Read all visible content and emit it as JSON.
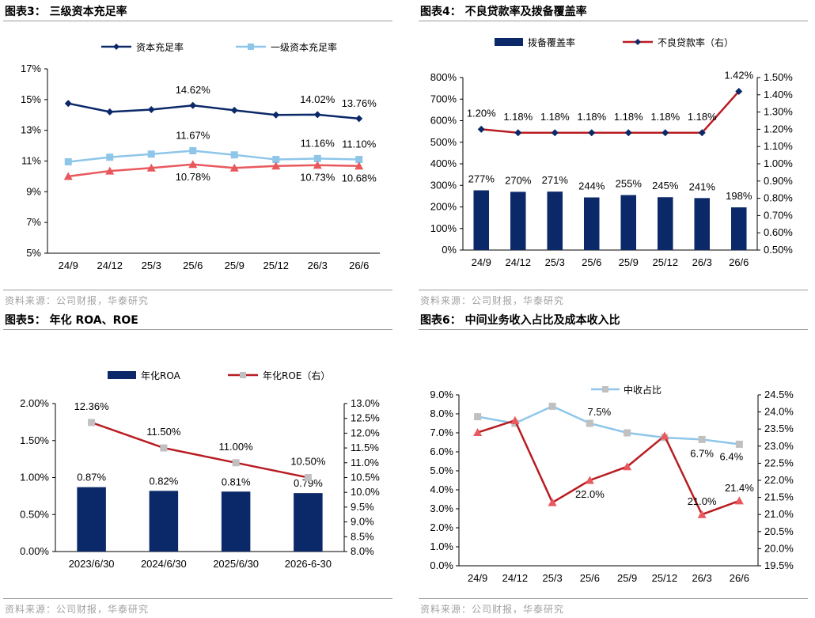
{
  "source_text": "资料来源：公司财报，华泰研究",
  "colors": {
    "navy": "#0b2868",
    "light_blue": "#8ec6ea",
    "red": "#b81c22",
    "salmon": "#e9585d",
    "gray_marker": "#c0c0c0",
    "rule": "#9a9a9a"
  },
  "chart_data": [
    {
      "panel_title": "图表3：  三级资本充足率",
      "type": "line",
      "categories": [
        "24/9",
        "24/12",
        "25/3",
        "25/6",
        "25/9",
        "25/12",
        "26/3",
        "26/6"
      ],
      "series": [
        {
          "name": "资本充足率",
          "values": [
            14.75,
            14.2,
            14.35,
            14.62,
            14.3,
            14.0,
            14.02,
            13.76
          ],
          "color": "navy",
          "marker": "diamond",
          "in_legend": true
        },
        {
          "name": "一级资本充足率",
          "values": [
            10.95,
            11.25,
            11.45,
            11.67,
            11.4,
            11.1,
            11.16,
            11.1
          ],
          "color": "light_blue",
          "marker": "square",
          "in_legend": true
        },
        {
          "name": "",
          "values": [
            10.0,
            10.35,
            10.55,
            10.78,
            10.55,
            10.68,
            10.73,
            10.68
          ],
          "color": "salmon",
          "marker": "triangle",
          "in_legend": false
        }
      ],
      "y_ticks": [
        "5%",
        "7%",
        "9%",
        "11%",
        "13%",
        "15%",
        "17%"
      ],
      "ylim": [
        5,
        17
      ],
      "data_labels": [
        {
          "series": 0,
          "index": 3,
          "text": "14.62%",
          "pos": "above"
        },
        {
          "series": 0,
          "index": 6,
          "text": "14.02%",
          "pos": "above"
        },
        {
          "series": 0,
          "index": 7,
          "text": "13.76%",
          "pos": "above"
        },
        {
          "series": 1,
          "index": 3,
          "text": "11.67%",
          "pos": "above"
        },
        {
          "series": 1,
          "index": 6,
          "text": "11.16%",
          "pos": "above"
        },
        {
          "series": 1,
          "index": 7,
          "text": "11.10%",
          "pos": "above"
        },
        {
          "series": 2,
          "index": 3,
          "text": "10.78%",
          "pos": "below"
        },
        {
          "series": 2,
          "index": 6,
          "text": "10.73%",
          "pos": "below"
        },
        {
          "series": 2,
          "index": 7,
          "text": "10.68%",
          "pos": "below"
        }
      ],
      "legend_position": "top"
    },
    {
      "panel_title": "图表4：  不良贷款率及拨备覆盖率",
      "type": "bar+line",
      "categories": [
        "24/9",
        "24/12",
        "25/3",
        "25/6",
        "25/9",
        "25/12",
        "26/3",
        "26/6"
      ],
      "bars": {
        "name": "拨备覆盖率",
        "values": [
          277,
          270,
          271,
          244,
          255,
          245,
          241,
          198
        ],
        "labels": [
          "277%",
          "270%",
          "271%",
          "244%",
          "255%",
          "245%",
          "241%",
          "198%"
        ],
        "color": "navy"
      },
      "line": {
        "name": "不良贷款率（右）",
        "values": [
          1.2,
          1.18,
          1.18,
          1.18,
          1.18,
          1.18,
          1.18,
          1.42
        ],
        "labels": [
          "1.20%",
          "1.18%",
          "1.18%",
          "1.18%",
          "1.18%",
          "1.18%",
          "1.18%",
          "1.42%"
        ],
        "color": "red",
        "marker_color": "navy"
      },
      "y_left_ticks": [
        "0%",
        "100%",
        "200%",
        "300%",
        "400%",
        "500%",
        "600%",
        "700%",
        "800%"
      ],
      "ylim_left": [
        0,
        800
      ],
      "y_right_ticks": [
        "0.50%",
        "0.60%",
        "0.70%",
        "0.80%",
        "0.90%",
        "1.00%",
        "1.10%",
        "1.20%",
        "1.30%",
        "1.40%",
        "1.50%"
      ],
      "ylim_right": [
        0.5,
        1.5
      ],
      "legend_position": "top"
    },
    {
      "panel_title": "图表5：  年化 ROA、ROE",
      "type": "bar+line",
      "categories": [
        "2023/6/30",
        "2024/6/30",
        "2025/6/30",
        "2026-6-30"
      ],
      "bars": {
        "name": "年化ROA",
        "values": [
          0.87,
          0.82,
          0.81,
          0.79
        ],
        "labels": [
          "0.87%",
          "0.82%",
          "0.81%",
          "0.79%"
        ],
        "color": "navy"
      },
      "line": {
        "name": "年化ROE（右）",
        "values": [
          12.36,
          11.5,
          11.0,
          10.5
        ],
        "labels": [
          "12.36%",
          "11.50%",
          "11.00%",
          "10.50%"
        ],
        "color": "red",
        "marker_color": "gray_marker"
      },
      "y_left_ticks": [
        "0.00%",
        "0.50%",
        "1.00%",
        "1.50%",
        "2.00%"
      ],
      "ylim_left": [
        0,
        2.0
      ],
      "y_right_ticks": [
        "8.0%",
        "8.5%",
        "9.0%",
        "9.5%",
        "10.0%",
        "10.5%",
        "11.0%",
        "11.5%",
        "12.0%",
        "12.5%",
        "13.0%"
      ],
      "ylim_right": [
        8.0,
        13.0
      ],
      "legend_position": "top"
    },
    {
      "panel_title": "图表6：  中间业务收入占比及成本收入比",
      "type": "line",
      "categories": [
        "24/9",
        "24/12",
        "25/3",
        "25/6",
        "25/9",
        "25/12",
        "26/3",
        "26/6"
      ],
      "series_left": {
        "name": "中收占比",
        "values": [
          7.85,
          7.5,
          8.4,
          7.5,
          7.0,
          6.75,
          6.65,
          6.4
        ],
        "color": "light_blue",
        "marker": "square",
        "in_legend": true
      },
      "series_right": {
        "name": "",
        "values": [
          23.4,
          23.75,
          21.35,
          22.0,
          22.4,
          23.3,
          21.0,
          21.4
        ],
        "color": "red",
        "marker": "triangle",
        "marker_color": "salmon",
        "in_legend": false
      },
      "y_left_ticks": [
        "0.0%",
        "1.0%",
        "2.0%",
        "3.0%",
        "4.0%",
        "5.0%",
        "6.0%",
        "7.0%",
        "8.0%",
        "9.0%"
      ],
      "ylim_left": [
        0,
        9.0
      ],
      "y_right_ticks": [
        "19.5%",
        "20.0%",
        "20.5%",
        "21.0%",
        "21.5%",
        "22.0%",
        "22.5%",
        "23.0%",
        "23.5%",
        "24.0%",
        "24.5%"
      ],
      "ylim_right": [
        19.5,
        24.5
      ],
      "data_labels": [
        {
          "series": "left",
          "index": 3,
          "text": "7.5%",
          "pos": "above-left"
        },
        {
          "series": "left",
          "index": 6,
          "text": "6.7%",
          "pos": "below"
        },
        {
          "series": "left",
          "index": 7,
          "text": "6.4%",
          "pos": "below-left"
        },
        {
          "series": "right",
          "index": 3,
          "text": "22.0%",
          "pos": "below"
        },
        {
          "series": "right",
          "index": 6,
          "text": "21.0%",
          "pos": "above"
        },
        {
          "series": "right",
          "index": 7,
          "text": "21.4%",
          "pos": "above"
        }
      ],
      "legend_position": "top"
    }
  ]
}
